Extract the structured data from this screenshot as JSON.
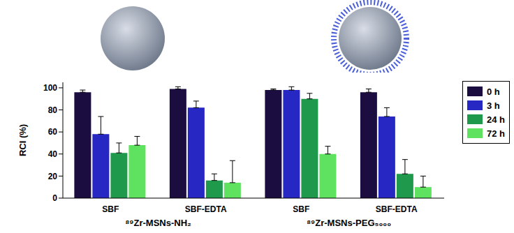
{
  "chart_data": {
    "type": "bar",
    "categories": [
      "SBF",
      "SBF-EDTA",
      "SBF",
      "SBF-EDTA"
    ],
    "group_labels": [
      "⁸⁹Zr-MSNs-NH₂",
      "⁸⁹Zr-MSNs-PEG₅₀₀₀"
    ],
    "y_label": "RCI (%)",
    "ylim": [
      0,
      105
    ],
    "yticks": [
      0,
      20,
      40,
      60,
      80,
      100
    ],
    "legend": "upper right",
    "grid": false,
    "series": [
      {
        "name": "0 h",
        "color": "#1b0d3f",
        "values": [
          96,
          99,
          98,
          96
        ],
        "errors": [
          2,
          2,
          1,
          3
        ]
      },
      {
        "name": "3 h",
        "color": "#2727c4",
        "values": [
          58,
          82,
          98,
          74
        ],
        "errors": [
          16,
          6,
          3,
          8
        ]
      },
      {
        "name": "24 h",
        "color": "#1f9a4c",
        "values": [
          41,
          16,
          90,
          22
        ],
        "errors": [
          9,
          6,
          5,
          13
        ]
      },
      {
        "name": "72 h",
        "color": "#5fe25f",
        "values": [
          48,
          14,
          40,
          10
        ],
        "errors": [
          8,
          20,
          7,
          10
        ]
      }
    ]
  }
}
